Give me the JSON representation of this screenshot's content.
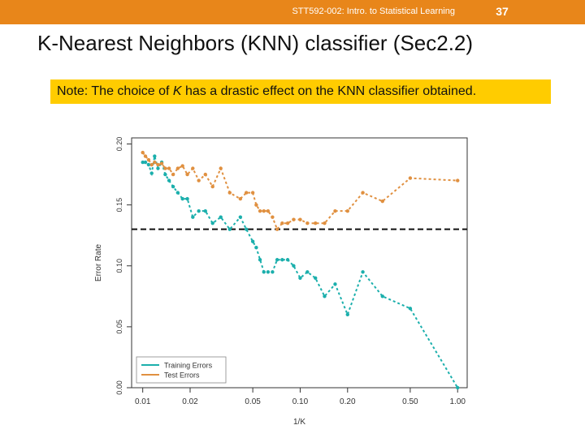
{
  "header": {
    "course": "STT592-002: Intro. to Statistical Learning",
    "slide_number": "37",
    "bar_color": "#e8861a"
  },
  "slide": {
    "title": "K-Nearest Neighbors (KNN) classifier (Sec2.2)",
    "note_prefix": "Note: The choice of ",
    "note_var": "K",
    "note_suffix": " has a drastic effect on the KNN classifier obtained.",
    "note_color": "#ffcc00"
  },
  "chart_data": {
    "type": "line",
    "xlabel": "1/K",
    "ylabel": "Error Rate",
    "x_scale": "log",
    "x_ticks": [
      0.01,
      0.02,
      0.05,
      0.1,
      0.2,
      0.5,
      1.0
    ],
    "x_tick_labels": [
      "0.01",
      "0.02",
      "0.05",
      "0.10",
      "0.20",
      "0.50",
      "1.00"
    ],
    "xlim": [
      0.0085,
      1.15
    ],
    "ylim": [
      0.0,
      0.205
    ],
    "y_ticks": [
      0.0,
      0.05,
      0.1,
      0.15,
      0.2
    ],
    "y_tick_labels": [
      "0.00",
      "0.05",
      "0.10",
      "0.15",
      "0.20"
    ],
    "legend_position": "bottom-left",
    "reference_line": {
      "y": 0.13,
      "style": "dashed"
    },
    "series": [
      {
        "name": "Training Errors",
        "color": "#1bafac",
        "x": [
          0.01,
          0.0104,
          0.0109,
          0.0114,
          0.0119,
          0.0125,
          0.0132,
          0.0139,
          0.0147,
          0.0156,
          0.0167,
          0.0179,
          0.0192,
          0.0208,
          0.0227,
          0.025,
          0.0278,
          0.0313,
          0.0357,
          0.0417,
          0.0455,
          0.05,
          0.0526,
          0.0556,
          0.0588,
          0.0625,
          0.0667,
          0.0714,
          0.0769,
          0.0833,
          0.0909,
          0.1,
          0.1111,
          0.125,
          0.1429,
          0.1667,
          0.2,
          0.25,
          0.3333,
          0.5,
          1.0
        ],
        "y": [
          0.185,
          0.185,
          0.183,
          0.176,
          0.19,
          0.18,
          0.185,
          0.175,
          0.17,
          0.165,
          0.16,
          0.155,
          0.155,
          0.14,
          0.145,
          0.145,
          0.135,
          0.14,
          0.13,
          0.14,
          0.13,
          0.12,
          0.115,
          0.105,
          0.095,
          0.095,
          0.095,
          0.105,
          0.105,
          0.105,
          0.1,
          0.09,
          0.095,
          0.09,
          0.075,
          0.085,
          0.06,
          0.095,
          0.075,
          0.065,
          0.0
        ]
      },
      {
        "name": "Test Errors",
        "color": "#e09040",
        "x": [
          0.01,
          0.0104,
          0.0109,
          0.0114,
          0.0119,
          0.0125,
          0.0132,
          0.0139,
          0.0147,
          0.0156,
          0.0167,
          0.0179,
          0.0192,
          0.0208,
          0.0227,
          0.025,
          0.0278,
          0.0313,
          0.0357,
          0.0417,
          0.0455,
          0.05,
          0.0526,
          0.0556,
          0.0588,
          0.0625,
          0.0667,
          0.0714,
          0.0769,
          0.0833,
          0.0909,
          0.1,
          0.1111,
          0.125,
          0.1429,
          0.1667,
          0.2,
          0.25,
          0.3333,
          0.5,
          1.0
        ],
        "y": [
          0.193,
          0.19,
          0.187,
          0.183,
          0.185,
          0.183,
          0.184,
          0.18,
          0.18,
          0.175,
          0.18,
          0.182,
          0.175,
          0.18,
          0.17,
          0.175,
          0.165,
          0.18,
          0.16,
          0.155,
          0.16,
          0.16,
          0.15,
          0.145,
          0.145,
          0.145,
          0.14,
          0.13,
          0.135,
          0.135,
          0.138,
          0.138,
          0.135,
          0.135,
          0.135,
          0.145,
          0.145,
          0.16,
          0.153,
          0.172,
          0.17
        ]
      }
    ]
  }
}
